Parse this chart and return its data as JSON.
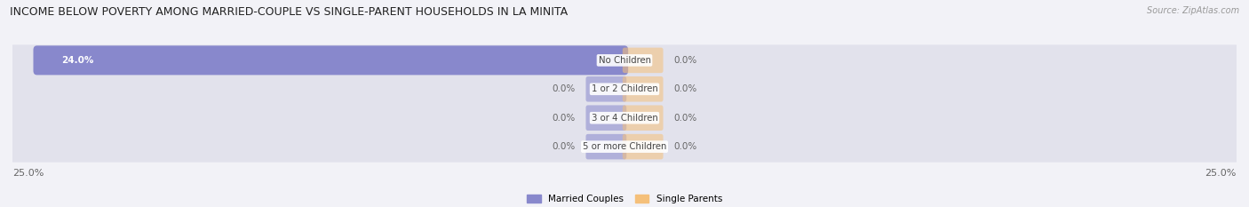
{
  "title": "INCOME BELOW POVERTY AMONG MARRIED-COUPLE VS SINGLE-PARENT HOUSEHOLDS IN LA MINITA",
  "source": "Source: ZipAtlas.com",
  "categories": [
    "No Children",
    "1 or 2 Children",
    "3 or 4 Children",
    "5 or more Children"
  ],
  "married_values": [
    24.0,
    0.0,
    0.0,
    0.0
  ],
  "single_values": [
    0.0,
    0.0,
    0.0,
    0.0
  ],
  "max_val": 25.0,
  "married_color": "#8888cc",
  "single_color": "#f5c07a",
  "married_label": "Married Couples",
  "single_label": "Single Parents",
  "bg_color": "#f2f2f7",
  "row_bg_color": "#e2e2ec",
  "title_fontsize": 9.0,
  "label_fontsize": 7.5,
  "tick_fontsize": 8.0,
  "source_fontsize": 7.0,
  "axis_label_color": "#666666",
  "text_in_bar_color": "#ffffff",
  "text_out_bar_color": "#666666",
  "cat_text_color": "#444444"
}
